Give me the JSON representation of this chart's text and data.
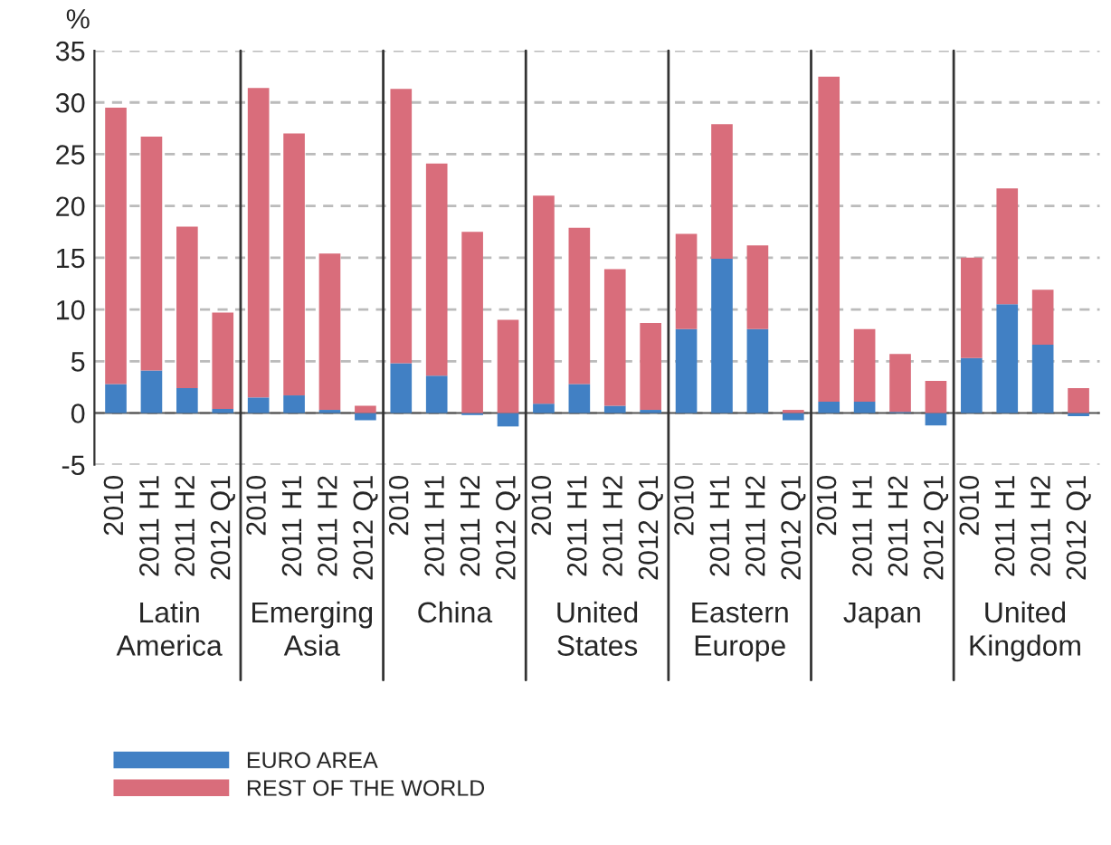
{
  "chart_data": {
    "type": "bar",
    "stacked": true,
    "ylabel": "%",
    "categories": [
      "2010",
      "2011 H1",
      "2011 H2",
      "2012 Q1",
      "2010",
      "2011 H1",
      "2011 H2",
      "2012 Q1",
      "2010",
      "2011 H1",
      "2011 H2",
      "2012 Q1",
      "2010",
      "2011 H1",
      "2011 H2",
      "2012 Q1",
      "2010",
      "2011 H1",
      "2011 H2",
      "2012 Q1",
      "2010",
      "2011 H1",
      "2011 H2",
      "2012 Q1",
      "2010",
      "2011 H1",
      "2011 H2",
      "2012 Q1"
    ],
    "annotations": [
      "Latin\nAmerica",
      "Emerging\nAsia",
      "China",
      "United\nStates",
      "Eastern\nEurope",
      "Japan",
      "United\nKingdom"
    ],
    "series": [
      {
        "name": "EURO AREA",
        "color": "#4180c4",
        "values": [
          2.8,
          4.1,
          2.4,
          0.4,
          1.5,
          1.7,
          0.3,
          -0.7,
          4.8,
          3.6,
          -0.2,
          -1.3,
          0.9,
          2.8,
          0.7,
          0.3,
          8.1,
          14.9,
          8.1,
          -0.7,
          1.1,
          1.1,
          0.1,
          -1.2,
          5.3,
          10.5,
          6.6,
          -0.3
        ]
      },
      {
        "name": "REST OF THE WORLD",
        "color": "#d96d7b",
        "values": [
          26.7,
          22.6,
          15.6,
          9.3,
          29.9,
          25.3,
          15.1,
          0.7,
          26.5,
          20.5,
          17.5,
          9.0,
          20.1,
          15.1,
          13.2,
          8.4,
          9.2,
          13.0,
          8.1,
          0.3,
          31.4,
          7.0,
          5.6,
          3.1,
          9.7,
          11.2,
          5.3,
          2.4
        ]
      }
    ],
    "ylim": [
      -5,
      35
    ],
    "yticks": [
      -5,
      0,
      5,
      10,
      15,
      20,
      25,
      30,
      35
    ],
    "grid": "y",
    "legend": "bottom left"
  }
}
